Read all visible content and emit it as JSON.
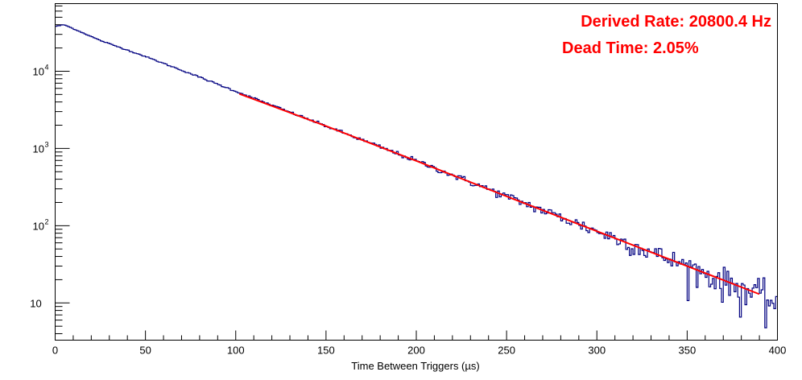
{
  "chart_data": {
    "type": "histogram",
    "xlabel": "Time Between Triggers (µs)",
    "ylabel": "",
    "xlim": [
      0,
      400
    ],
    "ylim": [
      3.3,
      75000
    ],
    "yscale": "log",
    "grid": false,
    "x_ticks": [
      0,
      50,
      100,
      150,
      200,
      250,
      300,
      350,
      400
    ],
    "x_tick_labels": [
      "0",
      "50",
      "100",
      "150",
      "200",
      "250",
      "300",
      "350",
      "400"
    ],
    "y_ticks": [
      {
        "value": 10,
        "label": "10"
      },
      {
        "value": 100,
        "base": "10",
        "exp": "2"
      },
      {
        "value": 1000,
        "base": "10",
        "exp": "3"
      },
      {
        "value": 10000,
        "base": "10",
        "exp": "4"
      }
    ],
    "histogram": {
      "color": "#000080",
      "bin_width": 1,
      "peak": {
        "x": 2,
        "y": 40000
      },
      "decay_rate_per_us": 0.0208,
      "counts_at": [
        {
          "x": 0,
          "y": 38000
        },
        {
          "x": 5,
          "y": 40000
        },
        {
          "x": 25,
          "y": 25000
        },
        {
          "x": 50,
          "y": 15500
        },
        {
          "x": 75,
          "y": 9300
        },
        {
          "x": 100,
          "y": 5500
        },
        {
          "x": 150,
          "y": 1950
        },
        {
          "x": 200,
          "y": 690
        },
        {
          "x": 250,
          "y": 240
        },
        {
          "x": 300,
          "y": 85
        },
        {
          "x": 350,
          "y": 30
        },
        {
          "x": 400,
          "y": 10
        }
      ]
    },
    "fit": {
      "color": "#ff0000",
      "x_range": [
        102,
        390
      ],
      "points": [
        {
          "x": 102,
          "y": 5100
        },
        {
          "x": 150,
          "y": 1950
        },
        {
          "x": 200,
          "y": 690
        },
        {
          "x": 250,
          "y": 240
        },
        {
          "x": 300,
          "y": 85
        },
        {
          "x": 350,
          "y": 30
        },
        {
          "x": 390,
          "y": 13
        }
      ]
    },
    "annotations": [
      {
        "text": "Derived Rate: 20800.4 Hz",
        "color": "#ff0000"
      },
      {
        "text": "Dead Time: 2.05%",
        "color": "#ff0000"
      }
    ]
  }
}
